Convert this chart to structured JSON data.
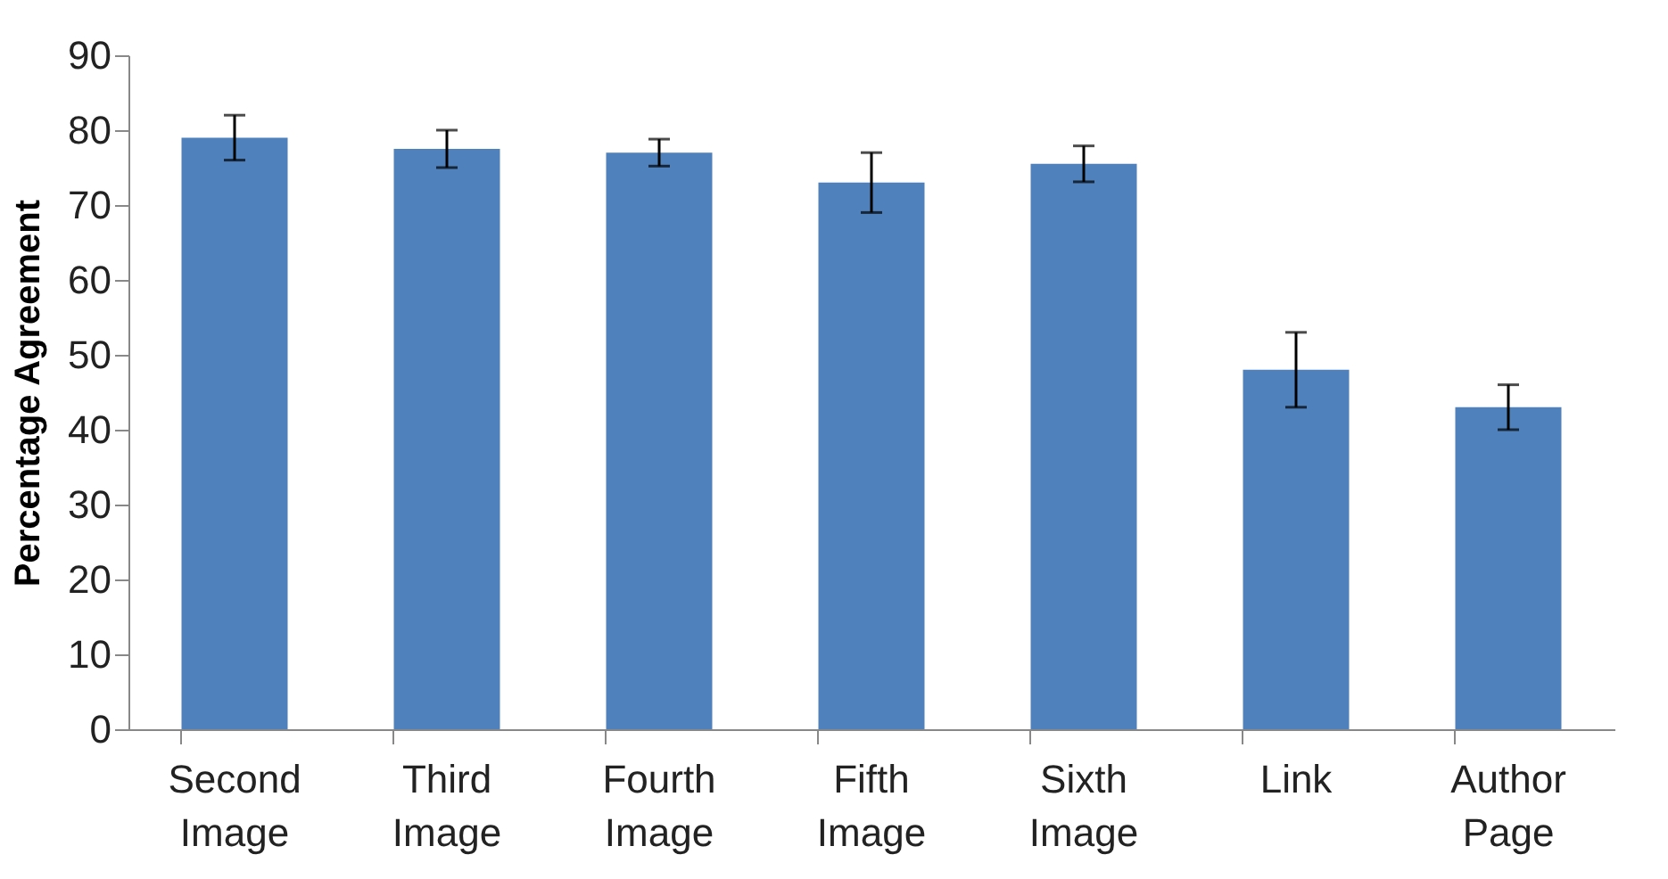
{
  "chart_data": {
    "type": "bar",
    "ylabel": "Percentage Agreement",
    "categories": [
      "Second Image",
      "Third Image",
      "Fourth Image",
      "Fifth Image",
      "Sixth Image",
      "Link",
      "Author Page"
    ],
    "values": [
      79,
      77.5,
      77,
      73,
      75.5,
      48,
      43
    ],
    "errors": [
      3,
      2.5,
      1.8,
      4,
      2.4,
      5,
      3
    ],
    "color": "#4f81bd",
    "ylim": [
      0,
      90
    ],
    "yticks": [
      0,
      10,
      20,
      30,
      40,
      50,
      60,
      70,
      80,
      90
    ],
    "grid": false
  }
}
